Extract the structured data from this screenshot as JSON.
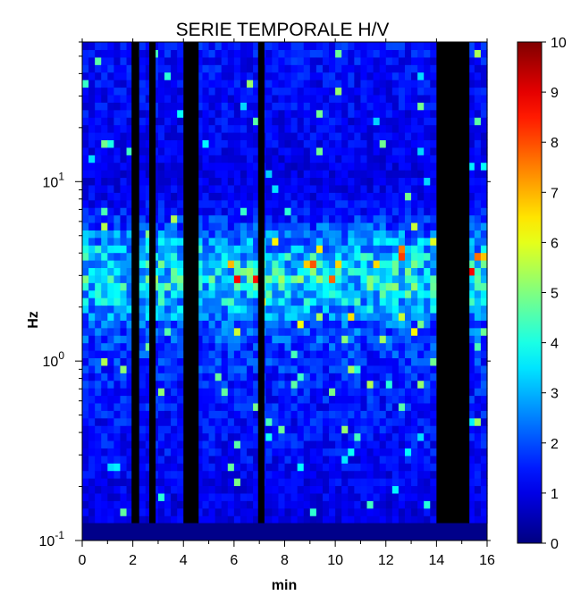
{
  "chart_data": {
    "type": "heatmap",
    "title": "SERIE TEMPORALE H/V",
    "xlabel": "min",
    "ylabel": "Hz",
    "xlim": [
      0,
      16
    ],
    "ylim": [
      0.1,
      60
    ],
    "y_scale": "log",
    "x_ticks": [
      "0",
      "2",
      "4",
      "6",
      "8",
      "10",
      "12",
      "14",
      "16"
    ],
    "x_tick_values": [
      0,
      2,
      4,
      6,
      8,
      10,
      12,
      14,
      16
    ],
    "y_ticks": [
      {
        "base": "10",
        "exp": "-1",
        "value": 0.1
      },
      {
        "base": "10",
        "exp": "0",
        "value": 1
      },
      {
        "base": "10",
        "exp": "1",
        "value": 10
      }
    ],
    "colorbar": {
      "min": 0,
      "max": 10,
      "ticks": [
        "0",
        "1",
        "2",
        "3",
        "4",
        "5",
        "6",
        "7",
        "8",
        "9",
        "10"
      ],
      "colormap": "jet"
    },
    "masked_time_intervals_min": [
      [
        1.95,
        2.25
      ],
      [
        2.65,
        2.9
      ],
      [
        4.0,
        4.6
      ],
      [
        6.95,
        7.2
      ],
      [
        14.0,
        15.3
      ]
    ],
    "bottom_band": {
      "ymin": 0.1,
      "ymax": 0.125,
      "value": 0.1
    },
    "time_step_min": 0.25,
    "amplitude_profile_by_frequency": [
      {
        "f": 0.13,
        "mean": 1.0
      },
      {
        "f": 0.2,
        "mean": 1.1
      },
      {
        "f": 0.3,
        "mean": 1.3
      },
      {
        "f": 0.5,
        "mean": 1.4
      },
      {
        "f": 0.8,
        "mean": 1.6
      },
      {
        "f": 1.2,
        "mean": 1.8
      },
      {
        "f": 1.6,
        "mean": 2.2
      },
      {
        "f": 2.0,
        "mean": 3.0
      },
      {
        "f": 2.5,
        "mean": 3.6
      },
      {
        "f": 3.0,
        "mean": 3.8
      },
      {
        "f": 3.6,
        "mean": 3.5
      },
      {
        "f": 4.3,
        "mean": 3.0
      },
      {
        "f": 5.2,
        "mean": 2.3
      },
      {
        "f": 6.5,
        "mean": 1.5
      },
      {
        "f": 8.5,
        "mean": 1.1
      },
      {
        "f": 12,
        "mean": 1.0
      },
      {
        "f": 20,
        "mean": 1.2
      },
      {
        "f": 40,
        "mean": 1.3
      },
      {
        "f": 60,
        "mean": 1.4
      }
    ],
    "grid": false
  }
}
